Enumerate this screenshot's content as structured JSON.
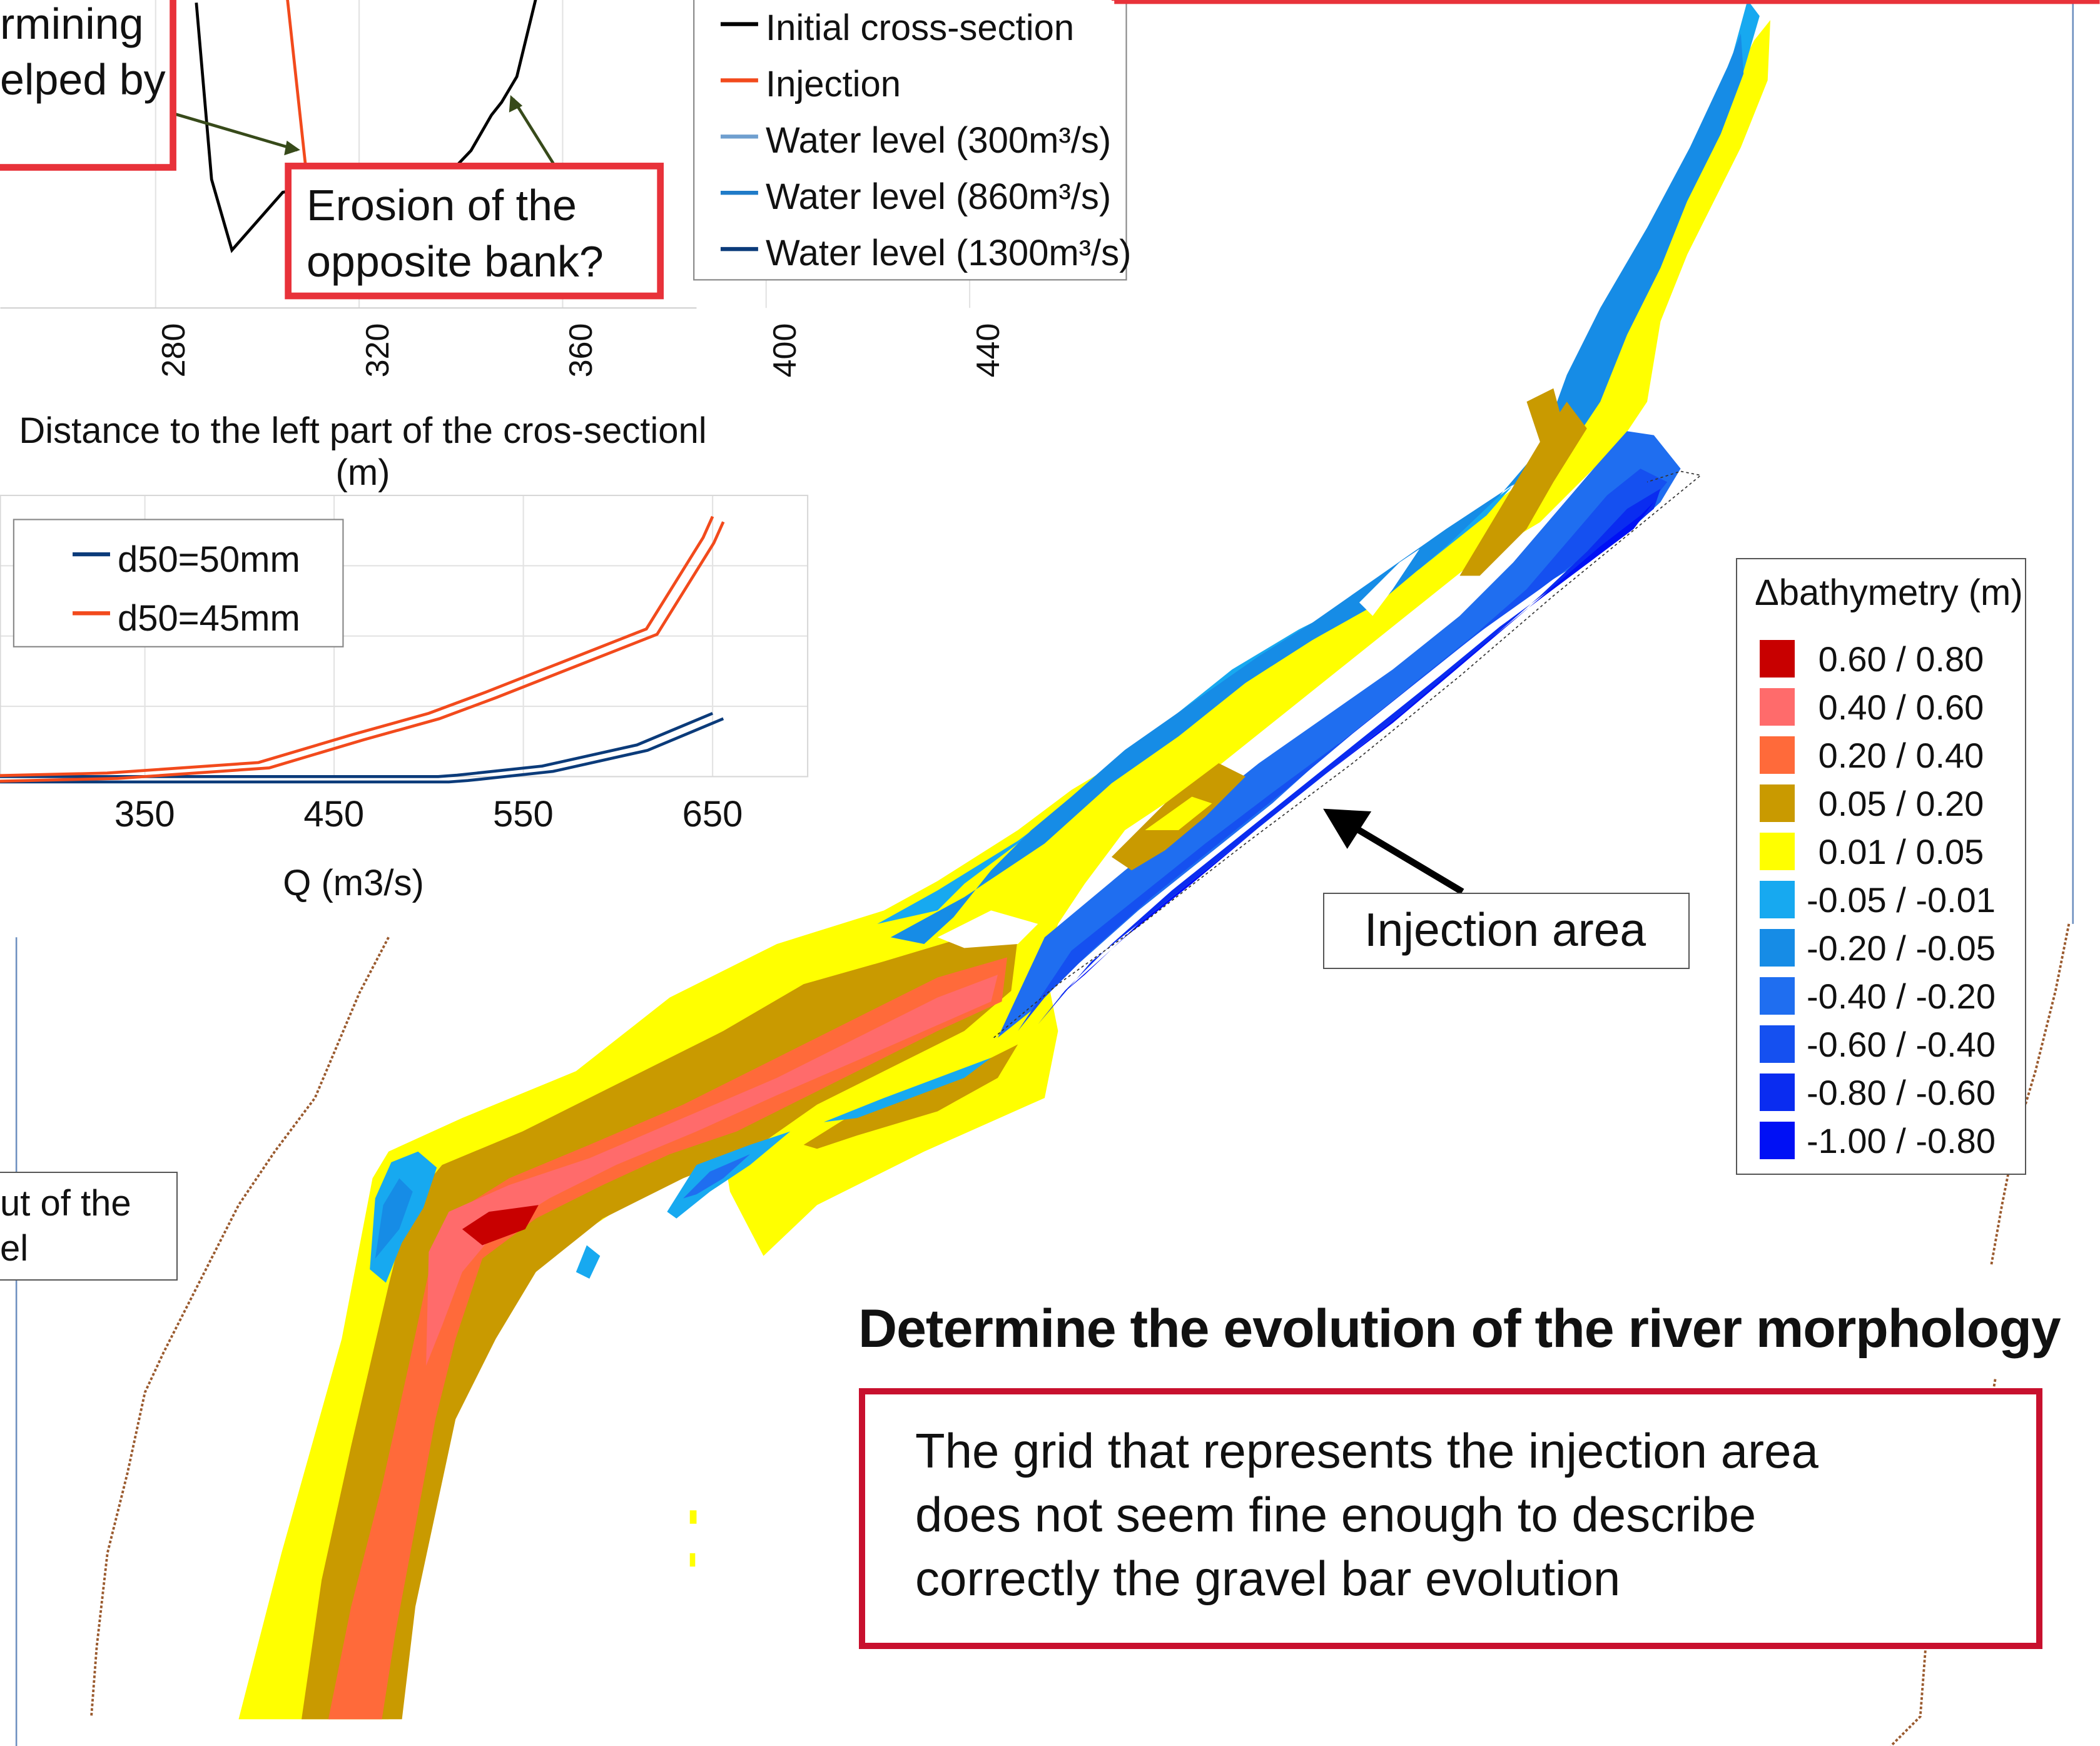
{
  "cross_section": {
    "annotation_left_lines": [
      "rmining",
      "elped by"
    ],
    "annotation_erosion_lines": [
      "Erosion of the",
      "opposite bank?"
    ],
    "x_ticks": [
      "280",
      "320",
      "360",
      "400",
      "440"
    ],
    "x_label": "Distance to the left part of the cros-sectionl (m)",
    "legend": [
      {
        "label": "Initial cross-section",
        "color": "#000000"
      },
      {
        "label": "Injection",
        "color": "#f24a1c"
      },
      {
        "label": "Water level (300m³/s)",
        "color": "#6f9fcf"
      },
      {
        "label": "Water level (860m³/s)",
        "color": "#1f7bc8"
      },
      {
        "label": "Water level (1300m³/s)",
        "color": "#0b3b7a"
      }
    ]
  },
  "chart_data": [
    {
      "type": "line",
      "title": "",
      "xlabel": "Distance to the left part of the cros-sectionl (m)",
      "ylabel": "",
      "x_ticks": [
        280,
        320,
        360,
        400,
        440
      ],
      "series": [
        {
          "name": "Initial cross-section",
          "color": "#000000",
          "x": [
            288,
            291,
            295,
            300,
            305,
            313,
            321,
            330,
            339,
            342,
            346,
            348,
            351,
            355
          ],
          "y": [
            0.95,
            0.4,
            0.18,
            0.27,
            0.36,
            0.38,
            0.4,
            0.36,
            0.44,
            0.49,
            0.6,
            0.64,
            0.72,
            0.98
          ]
        }
      ]
    },
    {
      "type": "line",
      "title": "",
      "xlabel": "Q (m3/s)",
      "ylabel": "",
      "x_ticks": [
        350,
        450,
        550,
        650
      ],
      "xlim": [
        250,
        750
      ],
      "series": [
        {
          "name": "d50=50mm",
          "color": "#0b3b7a",
          "x": [
            250,
            300,
            400,
            505,
            515,
            560,
            610,
            650
          ],
          "y": [
            0.0,
            0.0,
            0.0,
            0.0,
            0.002,
            0.015,
            0.045,
            0.09
          ]
        },
        {
          "name": "d50=45mm",
          "color": "#f24a1c",
          "x": [
            250,
            330,
            410,
            460,
            500,
            530,
            615,
            645,
            650
          ],
          "y": [
            0.0,
            0.005,
            0.02,
            0.06,
            0.09,
            0.12,
            0.21,
            0.34,
            0.37
          ]
        }
      ]
    }
  ],
  "rating": {
    "x_ticks": [
      "350",
      "450",
      "550",
      "650"
    ],
    "x_label": "Q (m3/s)",
    "legend": [
      {
        "label": "d50=50mm",
        "color": "#0b3b7a"
      },
      {
        "label": "d50=45mm",
        "color": "#f24a1c"
      }
    ]
  },
  "left_box_lines": [
    "ut of the",
    "el"
  ],
  "injection_label": "Injection area",
  "legend_bathy": {
    "title": "Δbathymetry (m)",
    "items": [
      {
        "label": "0.60 / 0.80",
        "color": "#c80000"
      },
      {
        "label": "0.40 / 0.60",
        "color": "#ff6b6b"
      },
      {
        "label": "0.20 / 0.40",
        "color": "#ff6a3a"
      },
      {
        "label": "0.05 / 0.20",
        "color": "#c99a00"
      },
      {
        "label": "0.01 / 0.05",
        "color": "#ffff00"
      },
      {
        "label": "-0.05 / -0.01",
        "color": "#17a9f0"
      },
      {
        "label": "-0.20 / -0.05",
        "color": "#168ce6"
      },
      {
        "label": "-0.40 / -0.20",
        "color": "#1f6ef0"
      },
      {
        "label": "-0.60 / -0.40",
        "color": "#1550f0"
      },
      {
        "label": "-0.80 / -0.60",
        "color": "#0a2cf0"
      },
      {
        "label": "-1.00 / -0.80",
        "color": "#0010f5"
      }
    ]
  },
  "heading": "Determine the evolution of the river morphology",
  "comment_lines": [
    "The grid that represents the injection area",
    "does not seem fine enough to describe",
    "correctly the gravel bar evolution"
  ]
}
